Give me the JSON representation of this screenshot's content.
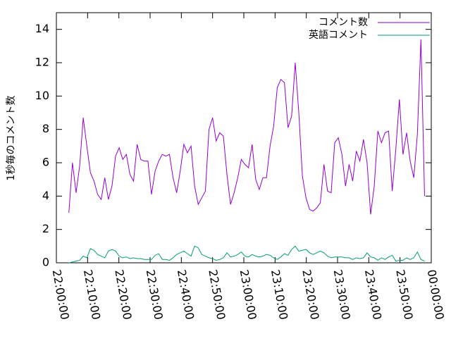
{
  "chart_data": {
    "type": "line",
    "ylabel": "1秒毎のコメント数",
    "x": [
      4,
      5.15,
      6.3,
      7.45,
      8.6,
      9.75,
      10.9,
      12.05,
      13.2,
      14.35,
      15.5,
      16.65,
      17.8,
      18.95,
      20.1,
      21.25,
      22.4,
      23.55,
      24.7,
      25.85,
      27,
      28.15,
      29.3,
      30.45,
      31.6,
      32.75,
      33.9,
      35.05,
      36.2,
      37.35,
      38.5,
      39.65,
      40.8,
      41.95,
      43.1,
      44.25,
      45.4,
      46.55,
      47.7,
      48.85,
      50,
      51.15,
      52.3,
      53.45,
      54.6,
      55.75,
      56.9,
      58.05,
      59.2,
      60.35,
      61.5,
      62.65,
      63.8,
      64.95,
      66.1,
      67.25,
      68.4,
      69.55,
      70.7,
      71.85,
      73,
      74.15,
      75.3,
      76.45,
      77.6,
      78.75,
      79.9,
      81.05,
      82.2,
      83.35,
      84.5,
      85.65,
      86.8,
      87.95,
      89.1,
      90.25,
      91.4,
      92.55,
      93.7,
      94.85,
      96,
      97.15,
      98.3,
      99.45,
      100.6,
      101.75,
      102.9,
      104.05,
      105.2,
      106.35,
      107.5,
      108.65,
      109.8,
      110.95,
      112.1,
      113.25,
      114.4,
      115.55,
      116.7,
      117.85
    ],
    "series": [
      {
        "name": "コメント数",
        "color": "#9400d3",
        "values": [
          3.0,
          6.0,
          4.2,
          5.8,
          8.7,
          7.0,
          5.4,
          4.9,
          4.1,
          3.8,
          5.1,
          3.8,
          4.6,
          6.4,
          6.9,
          6.2,
          6.5,
          5.3,
          4.9,
          7.1,
          6.2,
          6.1,
          6.1,
          4.1,
          5.5,
          6.1,
          6.5,
          6.4,
          6.5,
          5.1,
          4.2,
          5.5,
          7.1,
          6.6,
          7.0,
          4.6,
          3.5,
          3.9,
          4.3,
          8.0,
          8.7,
          7.3,
          7.8,
          7.6,
          5.3,
          3.5,
          4.2,
          5.1,
          6.2,
          5.9,
          5.7,
          7.1,
          5.0,
          4.4,
          5.1,
          5.1,
          7.0,
          8.2,
          10.5,
          11.0,
          10.8,
          8.1,
          8.8,
          12.0,
          9.0,
          5.2,
          3.9,
          3.2,
          3.1,
          3.3,
          3.6,
          5.9,
          4.3,
          4.2,
          7.2,
          7.5,
          6.5,
          4.6,
          5.9,
          4.9,
          6.7,
          6.1,
          7.4,
          6.0,
          2.9,
          4.6,
          7.9,
          7.2,
          7.8,
          7.9,
          4.3,
          6.8,
          9.8,
          6.5,
          7.8,
          6.1,
          5.1,
          7.7,
          13.4,
          4.0
        ]
      },
      {
        "name": "英語コメント",
        "color": "#009e73",
        "values": [
          0,
          0.05,
          0.1,
          0.15,
          0.4,
          0.3,
          0.85,
          0.75,
          0.5,
          0.4,
          0.3,
          0.7,
          0.8,
          0.7,
          0.4,
          0.3,
          0.35,
          0.25,
          0.3,
          0.25,
          0.25,
          0.2,
          0.2,
          0.2,
          0.45,
          0.55,
          0.2,
          0.2,
          0.15,
          0.3,
          0.5,
          0.6,
          0.7,
          0.55,
          0.4,
          1.0,
          0.9,
          0.5,
          0.4,
          0.3,
          0.25,
          0.15,
          0.2,
          0.3,
          0.6,
          0.35,
          0.4,
          0.5,
          0.65,
          0.4,
          0.35,
          0.5,
          0.4,
          0.35,
          0.4,
          0.5,
          0.45,
          0.3,
          0.2,
          0.35,
          0.55,
          0.45,
          0.8,
          1.0,
          0.7,
          0.75,
          0.8,
          0.6,
          0.5,
          0.6,
          0.7,
          0.6,
          0.4,
          0.3,
          0.35,
          0.35,
          0.35,
          0.3,
          0.3,
          0.2,
          0.3,
          0.25,
          0.3,
          0.6,
          0.35,
          0.3,
          0.15,
          0.3,
          0.2,
          0.35,
          0.45,
          0.1,
          0.15,
          0.15,
          0.3,
          0.2,
          0.3,
          0.65,
          0.2,
          0.1
        ]
      }
    ],
    "xlim": [
      0,
      120
    ],
    "xticks": [
      {
        "value": 0,
        "label": "22:00:00"
      },
      {
        "value": 10,
        "label": "22:10:00"
      },
      {
        "value": 20,
        "label": "22:20:00"
      },
      {
        "value": 30,
        "label": "22:30:00"
      },
      {
        "value": 40,
        "label": "22:40:00"
      },
      {
        "value": 50,
        "label": "22:50:00"
      },
      {
        "value": 60,
        "label": "23:00:00"
      },
      {
        "value": 70,
        "label": "23:10:00"
      },
      {
        "value": 80,
        "label": "23:20:00"
      },
      {
        "value": 90,
        "label": "23:30:00"
      },
      {
        "value": 100,
        "label": "23:40:00"
      },
      {
        "value": 110,
        "label": "23:50:00"
      },
      {
        "value": 120,
        "label": "00:00:00"
      }
    ],
    "ylim": [
      0,
      15
    ],
    "yticks": [
      0,
      2,
      4,
      6,
      8,
      10,
      12,
      14
    ],
    "legend": "top-right"
  }
}
